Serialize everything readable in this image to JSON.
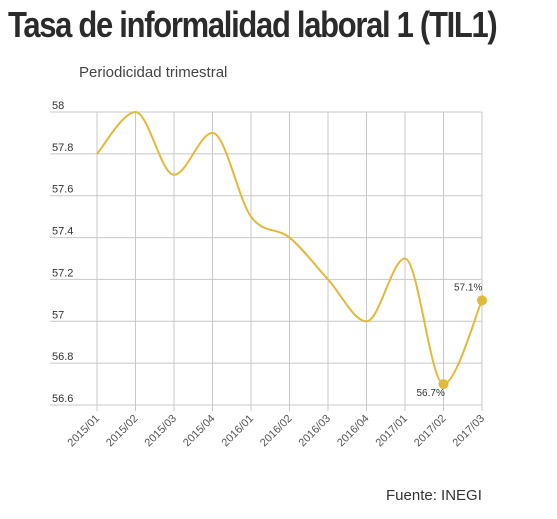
{
  "title": "Tasa de informalidad laboral 1 (TIL1)",
  "subtitle": "Periodicidad trimestral",
  "source": "Fuente: INEGI",
  "chart_data": {
    "type": "line",
    "title": "Tasa de informalidad laboral 1 (TIL1)",
    "subtitle": "Periodicidad trimestral",
    "categories": [
      "2015/01",
      "2015/02",
      "2015/03",
      "2015/04",
      "2016/01",
      "2016/02",
      "2016/03",
      "2016/04",
      "2017/01",
      "2017/02",
      "2017/03"
    ],
    "series": [
      {
        "values": [
          57.8,
          58.0,
          57.7,
          57.9,
          57.5,
          57.4,
          57.2,
          57.0,
          57.3,
          56.7,
          57.1
        ],
        "color": "#e2b93b"
      }
    ],
    "yticks": [
      "58",
      "57.8",
      "57.6",
      "57.4",
      "57.2",
      "57",
      "56.8",
      "56.6"
    ],
    "ylim": [
      56.6,
      58.0
    ],
    "grid": true,
    "annotations": [
      {
        "category": "2017/02",
        "value": 56.7,
        "label": "56.7%"
      },
      {
        "category": "2017/03",
        "value": 57.1,
        "label": "57.1%"
      }
    ],
    "line_color": "#e2b93b",
    "grid_color": "#c8c8c8"
  }
}
